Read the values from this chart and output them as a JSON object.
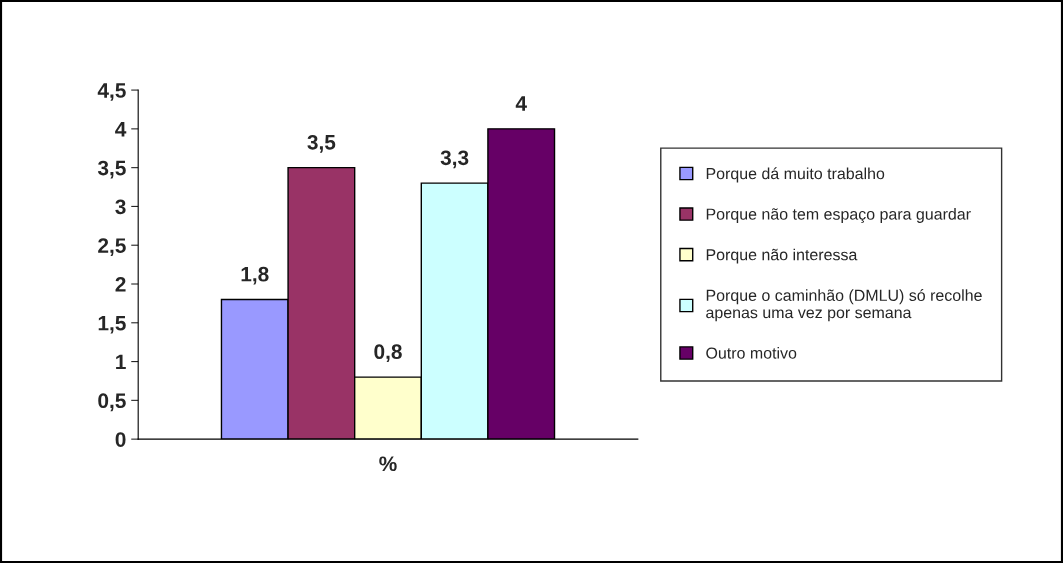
{
  "chart_data": {
    "type": "bar",
    "categories": [
      "%"
    ],
    "series": [
      {
        "name": "Porque dá muito trabalho",
        "color": "#9999ff",
        "values": [
          1.8
        ],
        "value_labels": [
          "1,8"
        ]
      },
      {
        "name": "Porque não tem espaço para guardar",
        "color": "#993366",
        "values": [
          3.5
        ],
        "value_labels": [
          "3,5"
        ]
      },
      {
        "name": "Porque não interessa",
        "color": "#ffffcc",
        "values": [
          0.8
        ],
        "value_labels": [
          "0,8"
        ]
      },
      {
        "name": "Porque o caminhão (DMLU) só recolhe apenas uma vez por semana",
        "color": "#ccffff",
        "values": [
          3.3
        ],
        "value_labels": [
          "3,3"
        ]
      },
      {
        "name": "Outro motivo",
        "color": "#660066",
        "values": [
          4
        ],
        "value_labels": [
          "4"
        ]
      }
    ],
    "ylim": [
      0,
      4.5
    ],
    "yticks": [
      0,
      {
        "value": 0.5,
        "label": "0,5"
      },
      1,
      {
        "value": 1.5,
        "label": "1,5"
      },
      2,
      {
        "value": 2.5,
        "label": "2,5"
      },
      3,
      {
        "value": 3.5,
        "label": "3,5"
      },
      4,
      {
        "value": 4.5,
        "label": "4,5"
      }
    ],
    "grid": false,
    "legend": "right"
  }
}
